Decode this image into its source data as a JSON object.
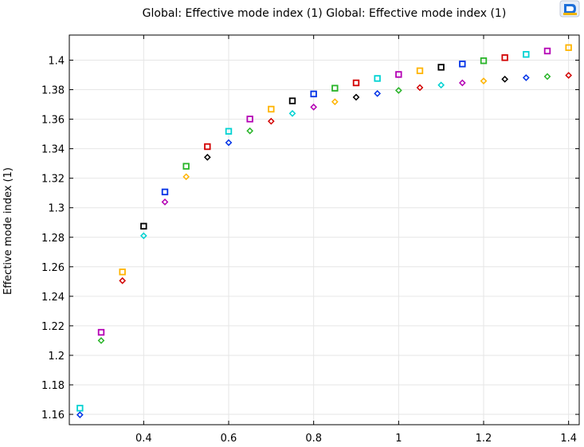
{
  "title": "Global: Effective mode index (1)  Global: Effective mode index (1)",
  "chart_data": {
    "type": "scatter",
    "title": "Global: Effective mode index (1)  Global: Effective mode index (1)",
    "xlabel": "",
    "ylabel": "Effective mode index (1)",
    "xlim": [
      0.225,
      1.425
    ],
    "ylim": [
      1.153,
      1.417
    ],
    "x_ticks": [
      0.4,
      0.6,
      0.8,
      1,
      1.2,
      1.4
    ],
    "x_tick_labels": [
      "0.4",
      "0.6",
      "0.8",
      "1",
      "1.2",
      "1.4"
    ],
    "y_ticks": [
      1.16,
      1.18,
      1.2,
      1.22,
      1.24,
      1.26,
      1.28,
      1.3,
      1.32,
      1.34,
      1.36,
      1.38,
      1.4
    ],
    "y_tick_labels": [
      "1.16",
      "1.18",
      "1.2",
      "1.22",
      "1.24",
      "1.26",
      "1.28",
      "1.3",
      "1.32",
      "1.34",
      "1.36",
      "1.38",
      "1.4"
    ],
    "grid": true,
    "series": [
      {
        "marker": "square",
        "points": [
          {
            "x": 0.25,
            "y": 1.1642,
            "color": "#00d2d2"
          },
          {
            "x": 0.3,
            "y": 1.2156,
            "color": "#b400b4"
          },
          {
            "x": 0.35,
            "y": 1.2565,
            "color": "#ffb400"
          },
          {
            "x": 0.4,
            "y": 1.2875,
            "color": "#000000"
          },
          {
            "x": 0.45,
            "y": 1.3107,
            "color": "#0032e6"
          },
          {
            "x": 0.5,
            "y": 1.3281,
            "color": "#28b428"
          },
          {
            "x": 0.55,
            "y": 1.3414,
            "color": "#d20000"
          },
          {
            "x": 0.6,
            "y": 1.3518,
            "color": "#00d2d2"
          },
          {
            "x": 0.65,
            "y": 1.3601,
            "color": "#b400b4"
          },
          {
            "x": 0.7,
            "y": 1.3668,
            "color": "#ffb400"
          },
          {
            "x": 0.75,
            "y": 1.3724,
            "color": "#000000"
          },
          {
            "x": 0.8,
            "y": 1.3771,
            "color": "#0032e6"
          },
          {
            "x": 0.85,
            "y": 1.381,
            "color": "#28b428"
          },
          {
            "x": 0.9,
            "y": 1.3846,
            "color": "#d20000"
          },
          {
            "x": 0.95,
            "y": 1.3876,
            "color": "#00d2d2"
          },
          {
            "x": 1.0,
            "y": 1.3903,
            "color": "#b400b4"
          },
          {
            "x": 1.05,
            "y": 1.3928,
            "color": "#ffb400"
          },
          {
            "x": 1.1,
            "y": 1.3952,
            "color": "#000000"
          },
          {
            "x": 1.15,
            "y": 1.3974,
            "color": "#0032e6"
          },
          {
            "x": 1.2,
            "y": 1.3996,
            "color": "#28b428"
          },
          {
            "x": 1.25,
            "y": 1.4017,
            "color": "#d20000"
          },
          {
            "x": 1.3,
            "y": 1.4039,
            "color": "#00d2d2"
          },
          {
            "x": 1.35,
            "y": 1.4062,
            "color": "#b400b4"
          },
          {
            "x": 1.4,
            "y": 1.4085,
            "color": "#ffb400"
          }
        ]
      },
      {
        "marker": "diamond",
        "points": [
          {
            "x": 0.25,
            "y": 1.1597,
            "color": "#0032e6"
          },
          {
            "x": 0.3,
            "y": 1.21,
            "color": "#28b428"
          },
          {
            "x": 0.35,
            "y": 1.2506,
            "color": "#d20000"
          },
          {
            "x": 0.4,
            "y": 1.281,
            "color": "#00d2d2"
          },
          {
            "x": 0.45,
            "y": 1.3039,
            "color": "#b400b4"
          },
          {
            "x": 0.5,
            "y": 1.321,
            "color": "#ffb400"
          },
          {
            "x": 0.55,
            "y": 1.3342,
            "color": "#000000"
          },
          {
            "x": 0.6,
            "y": 1.3441,
            "color": "#0032e6"
          },
          {
            "x": 0.65,
            "y": 1.3521,
            "color": "#28b428"
          },
          {
            "x": 0.7,
            "y": 1.3586,
            "color": "#d20000"
          },
          {
            "x": 0.75,
            "y": 1.3639,
            "color": "#00d2d2"
          },
          {
            "x": 0.8,
            "y": 1.3682,
            "color": "#b400b4"
          },
          {
            "x": 0.85,
            "y": 1.3718,
            "color": "#ffb400"
          },
          {
            "x": 0.9,
            "y": 1.3749,
            "color": "#000000"
          },
          {
            "x": 0.95,
            "y": 1.3774,
            "color": "#0032e6"
          },
          {
            "x": 1.0,
            "y": 1.3795,
            "color": "#28b428"
          },
          {
            "x": 1.05,
            "y": 1.3814,
            "color": "#d20000"
          },
          {
            "x": 1.1,
            "y": 1.3831,
            "color": "#00d2d2"
          },
          {
            "x": 1.15,
            "y": 1.3846,
            "color": "#b400b4"
          },
          {
            "x": 1.2,
            "y": 1.3859,
            "color": "#ffb400"
          },
          {
            "x": 1.25,
            "y": 1.3871,
            "color": "#000000"
          },
          {
            "x": 1.3,
            "y": 1.3881,
            "color": "#0032e6"
          },
          {
            "x": 1.35,
            "y": 1.3889,
            "color": "#28b428"
          },
          {
            "x": 1.4,
            "y": 1.3897,
            "color": "#d20000"
          }
        ]
      }
    ]
  },
  "toolbar_icon": "comsol-logo-icon",
  "colors": {
    "frame": "#000000",
    "grid": "#e6e6e6",
    "background": "#ffffff"
  }
}
